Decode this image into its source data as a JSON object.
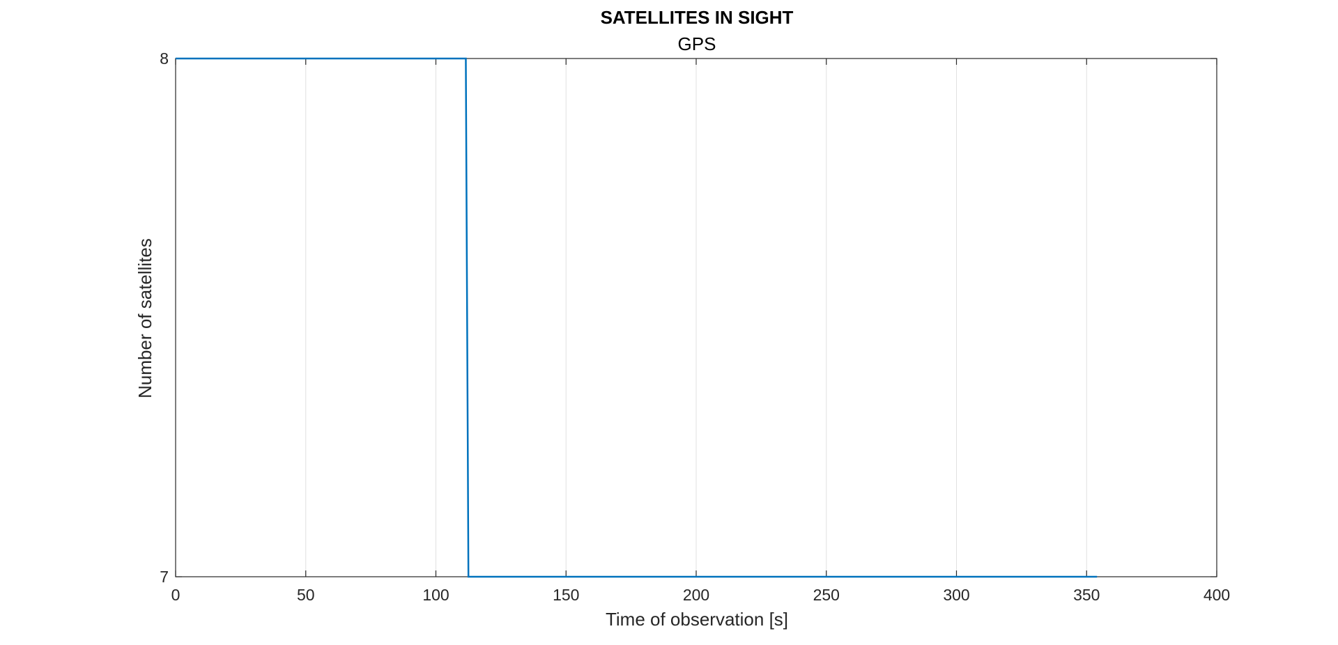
{
  "chart_data": {
    "type": "line",
    "title": "SATELLITES IN SIGHT",
    "subtitle": "GPS",
    "xlabel": "Time of observation [s]",
    "ylabel": "Number of satellites",
    "xlim": [
      0,
      400
    ],
    "ylim": [
      7,
      8
    ],
    "xticks": [
      0,
      50,
      100,
      150,
      200,
      250,
      300,
      350,
      400
    ],
    "yticks": [
      7,
      8
    ],
    "grid": "x",
    "series": [
      {
        "color": "#0072BD",
        "x": [
          0,
          111.5,
          112.5,
          354
        ],
        "y": [
          8,
          8,
          7,
          7
        ]
      }
    ]
  }
}
